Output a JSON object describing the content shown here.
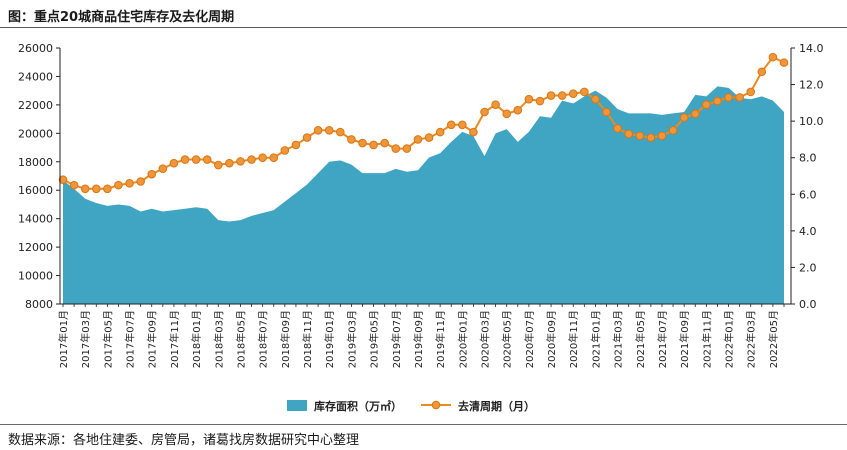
{
  "title": "图：重点20城商品住宅库存及去化周期",
  "source": "数据来源：各地住建委、房管局，诸葛找房数据研究中心整理",
  "colors": {
    "area": "#3fa5c3",
    "line": "#ea8a1f",
    "marker_fill": "#f0963a",
    "marker_edge": "#d87612"
  },
  "chart_data": {
    "type": "area",
    "x": [
      "2017年01月",
      "2017年02月",
      "2017年03月",
      "2017年04月",
      "2017年05月",
      "2017年06月",
      "2017年07月",
      "2017年08月",
      "2017年09月",
      "2017年10月",
      "2017年11月",
      "2017年12月",
      "2018年01月",
      "2018年02月",
      "2018年03月",
      "2018年04月",
      "2018年05月",
      "2018年06月",
      "2018年07月",
      "2018年08月",
      "2018年09月",
      "2018年10月",
      "2018年11月",
      "2018年12月",
      "2019年01月",
      "2019年02月",
      "2019年03月",
      "2019年04月",
      "2019年05月",
      "2019年06月",
      "2019年07月",
      "2019年08月",
      "2019年09月",
      "2019年10月",
      "2019年11月",
      "2019年12月",
      "2020年01月",
      "2020年02月",
      "2020年03月",
      "2020年04月",
      "2020年05月",
      "2020年06月",
      "2020年07月",
      "2020年08月",
      "2020年09月",
      "2020年10月",
      "2020年11月",
      "2020年12月",
      "2021年01月",
      "2021年02月",
      "2021年03月",
      "2021年04月",
      "2021年05月",
      "2021年06月",
      "2021年07月",
      "2021年08月",
      "2021年09月",
      "2021年10月",
      "2021年11月",
      "2021年12月",
      "2022年01月",
      "2022年02月",
      "2022年03月",
      "2022年04月",
      "2022年05月",
      "2022年06月"
    ],
    "xtick_labels": [
      "2017年01月",
      "2017年03月",
      "2017年05月",
      "2017年07月",
      "2017年09月",
      "2017年11月",
      "2018年01月",
      "2018年03月",
      "2018年05月",
      "2018年07月",
      "2018年09月",
      "2018年11月",
      "2019年01月",
      "2019年03月",
      "2019年05月",
      "2019年07月",
      "2019年09月",
      "2019年11月",
      "2020年01月",
      "2020年03月",
      "2020年05月",
      "2020年07月",
      "2020年09月",
      "2020年11月",
      "2021年01月",
      "2021年03月",
      "2021年05月",
      "2021年07月",
      "2021年09月",
      "2021年11月",
      "2022年01月",
      "2022年03月",
      "2022年05月"
    ],
    "series": [
      {
        "name": "库存面积（万㎡）",
        "type": "area",
        "axis": "left",
        "values": [
          16700,
          16100,
          15400,
          15100,
          14900,
          15000,
          14900,
          14500,
          14700,
          14500,
          14600,
          14700,
          14800,
          14700,
          13900,
          13800,
          13900,
          14200,
          14400,
          14600,
          15200,
          15800,
          16400,
          17200,
          18000,
          18100,
          17800,
          17200,
          17200,
          17200,
          17500,
          17300,
          17400,
          18300,
          18600,
          19400,
          20100,
          19800,
          18400,
          20000,
          20300,
          19400,
          20100,
          21200,
          21100,
          22300,
          22100,
          22600,
          23000,
          22500,
          21700,
          21400,
          21400,
          21400,
          21300,
          21400,
          21500,
          22700,
          22600,
          23300,
          23200,
          22500,
          22400,
          22600,
          22300,
          21500
        ]
      },
      {
        "name": "去清周期（月）",
        "type": "line",
        "axis": "right",
        "values": [
          6.8,
          6.5,
          6.3,
          6.3,
          6.3,
          6.5,
          6.6,
          6.7,
          7.1,
          7.4,
          7.7,
          7.9,
          7.9,
          7.9,
          7.6,
          7.7,
          7.8,
          7.9,
          8.0,
          8.0,
          8.4,
          8.7,
          9.1,
          9.5,
          9.5,
          9.4,
          9.0,
          8.8,
          8.7,
          8.8,
          8.5,
          8.5,
          9.0,
          9.1,
          9.4,
          9.8,
          9.8,
          9.4,
          10.5,
          10.9,
          10.4,
          10.6,
          11.2,
          11.1,
          11.4,
          11.4,
          11.5,
          11.6,
          11.2,
          10.5,
          9.6,
          9.3,
          9.2,
          9.1,
          9.2,
          9.5,
          10.2,
          10.4,
          10.9,
          11.1,
          11.3,
          11.3,
          11.6,
          12.7,
          13.5,
          13.2
        ]
      }
    ],
    "y_left": {
      "min": 8000,
      "max": 26000,
      "ticks": [
        8000,
        10000,
        12000,
        14000,
        16000,
        18000,
        20000,
        22000,
        24000,
        26000
      ]
    },
    "y_right": {
      "min": 0.0,
      "max": 14.0,
      "ticks": [
        "0.0",
        "2.0",
        "4.0",
        "6.0",
        "8.0",
        "10.0",
        "12.0",
        "14.0"
      ]
    },
    "legend_position": "bottom-center",
    "grid": false
  }
}
